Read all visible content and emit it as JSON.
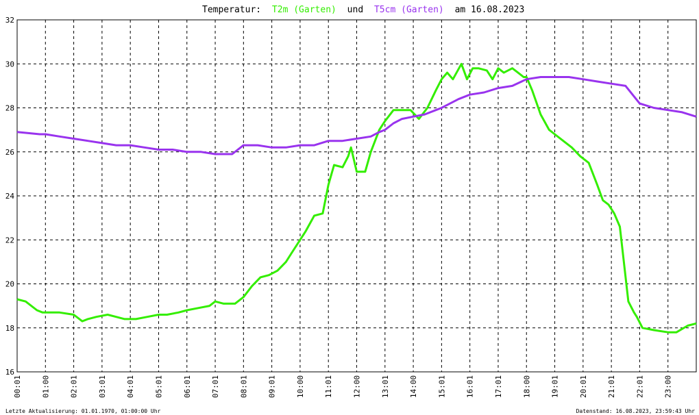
{
  "chart_data": {
    "type": "line",
    "title": {
      "prefix": "Temperatur:",
      "series1_label": "T2m (Garten)",
      "connector": "und",
      "series2_label": "T5cm (Garten)",
      "suffix": "am 16.08.2023"
    },
    "xlabel": "",
    "ylabel": "",
    "ylim": [
      16,
      32
    ],
    "y_ticks": [
      "16",
      "18",
      "20",
      "22",
      "24",
      "26",
      "28",
      "30",
      "32"
    ],
    "x_ticks": [
      "00:01",
      "01:00",
      "02:01",
      "03:01",
      "04:01",
      "05:01",
      "06:01",
      "07:01",
      "08:01",
      "09:01",
      "10:00",
      "11:01",
      "12:00",
      "13:01",
      "14:00",
      "15:01",
      "16:01",
      "17:01",
      "18:00",
      "19:01",
      "20:01",
      "21:01",
      "22:01",
      "23:00"
    ],
    "x_unit": "hours since 00:00",
    "grid": true,
    "legend": "none (series named in title)",
    "series": [
      {
        "name": "T2m (Garten)",
        "color": "#33ee00",
        "x": [
          0,
          0.3,
          0.7,
          0.9,
          1.5,
          2.0,
          2.3,
          2.5,
          2.8,
          3.2,
          3.5,
          3.8,
          4.2,
          4.6,
          5.0,
          5.3,
          5.7,
          6.0,
          6.4,
          6.8,
          7.0,
          7.3,
          7.7,
          8.0,
          8.3,
          8.6,
          8.9,
          9.2,
          9.5,
          9.7,
          10.0,
          10.2,
          10.5,
          10.8,
          11.0,
          11.2,
          11.5,
          11.7,
          11.8,
          12.0,
          12.3,
          12.5,
          12.8,
          13.0,
          13.3,
          13.6,
          13.9,
          14.2,
          14.5,
          14.8,
          15.0,
          15.2,
          15.4,
          15.7,
          15.9,
          16.1,
          16.3,
          16.6,
          16.8,
          17.0,
          17.2,
          17.5,
          17.7,
          17.9,
          18.0,
          18.2,
          18.5,
          18.8,
          19.0,
          19.3,
          19.6,
          19.9,
          20.2,
          20.5,
          20.7,
          20.9,
          21.1,
          21.3,
          21.6,
          21.8,
          21.9,
          22.1,
          22.5,
          23.0,
          23.3,
          23.7,
          24.0
        ],
        "values": [
          19.3,
          19.2,
          18.8,
          18.7,
          18.7,
          18.6,
          18.3,
          18.4,
          18.5,
          18.6,
          18.5,
          18.4,
          18.4,
          18.5,
          18.6,
          18.6,
          18.7,
          18.8,
          18.9,
          19.0,
          19.2,
          19.1,
          19.1,
          19.4,
          19.9,
          20.3,
          20.4,
          20.6,
          21.0,
          21.4,
          22.0,
          22.4,
          23.1,
          23.2,
          24.5,
          25.4,
          25.3,
          25.8,
          26.2,
          25.1,
          25.1,
          26.0,
          27.0,
          27.4,
          27.9,
          27.9,
          27.9,
          27.5,
          28.0,
          28.8,
          29.3,
          29.6,
          29.3,
          30.0,
          29.3,
          29.8,
          29.8,
          29.7,
          29.3,
          29.8,
          29.6,
          29.8,
          29.6,
          29.4,
          29.4,
          28.8,
          27.7,
          27.0,
          26.8,
          26.5,
          26.2,
          25.8,
          25.5,
          24.5,
          23.8,
          23.6,
          23.2,
          22.6,
          19.2,
          18.7,
          18.5,
          18.0,
          17.9,
          17.8,
          17.8,
          18.1,
          18.2
        ]
      },
      {
        "name": "T5cm (Garten)",
        "color": "#9933ee",
        "x": [
          0,
          0.8,
          1.0,
          1.5,
          2.0,
          2.5,
          3.0,
          3.5,
          4.0,
          4.5,
          5.0,
          5.5,
          6.0,
          6.5,
          7.0,
          7.3,
          7.6,
          8.0,
          8.5,
          9.0,
          9.5,
          10.0,
          10.5,
          11.0,
          11.5,
          12.0,
          12.5,
          12.8,
          13.0,
          13.3,
          13.6,
          14.0,
          14.4,
          14.8,
          15.0,
          15.3,
          15.6,
          16.0,
          16.5,
          17.0,
          17.5,
          18.0,
          18.5,
          19.0,
          19.5,
          20.0,
          20.5,
          21.0,
          21.5,
          22.0,
          22.5,
          23.0,
          23.5,
          24.0
        ],
        "values": [
          26.9,
          26.8,
          26.8,
          26.7,
          26.6,
          26.5,
          26.4,
          26.3,
          26.3,
          26.2,
          26.1,
          26.1,
          26.0,
          26.0,
          25.9,
          25.9,
          25.9,
          26.3,
          26.3,
          26.2,
          26.2,
          26.3,
          26.3,
          26.5,
          26.5,
          26.6,
          26.7,
          26.9,
          27.0,
          27.3,
          27.5,
          27.6,
          27.7,
          27.9,
          28.0,
          28.2,
          28.4,
          28.6,
          28.7,
          28.9,
          29.0,
          29.3,
          29.4,
          29.4,
          29.4,
          29.3,
          29.2,
          29.1,
          29.0,
          28.2,
          28.0,
          27.9,
          27.8,
          27.6
        ]
      }
    ]
  },
  "footer": {
    "left": "Letzte Aktualisierung: 01.01.1970, 01:00:00 Uhr",
    "right": "Datenstand: 16.08.2023, 23:59:43 Uhr"
  }
}
